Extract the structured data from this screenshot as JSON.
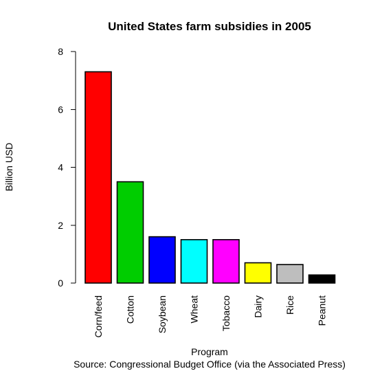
{
  "chart_data": {
    "type": "bar",
    "title": "United States farm subsidies in 2005",
    "xlabel": "Program",
    "ylabel": "Billion USD",
    "source": "Source:  Congressional Budget Office (via the Associated Press)",
    "categories": [
      "Corn/feed",
      "Cotton",
      "Soybean",
      "Wheat",
      "Tobacco",
      "Dairy",
      "Rice",
      "Peanut"
    ],
    "values": [
      7.3,
      3.5,
      1.6,
      1.5,
      1.5,
      0.7,
      0.64,
      0.28
    ],
    "colors": [
      "#ff0000",
      "#00cd00",
      "#0000ff",
      "#00ffff",
      "#ff00ff",
      "#ffff00",
      "#bebebe",
      "#000000"
    ],
    "ylim": [
      0,
      8
    ],
    "yticks": [
      0,
      2,
      4,
      6,
      8
    ],
    "grid": false,
    "legend": "none"
  }
}
